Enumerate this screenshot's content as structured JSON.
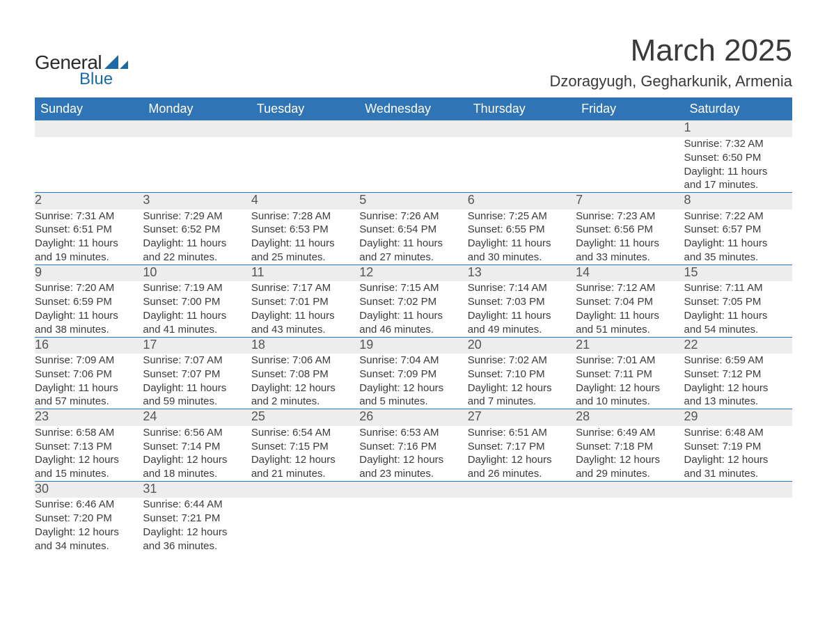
{
  "brand": {
    "name_part1": "General",
    "name_part2": "Blue",
    "text_color": "#2a2a2a",
    "accent_color": "#1a6aa8"
  },
  "title": {
    "month_year": "March 2025",
    "location": "Dzoragyugh, Gegharkunik, Armenia",
    "title_fontsize": 44,
    "location_fontsize": 22,
    "title_color": "#3a3a3a"
  },
  "calendar": {
    "type": "table",
    "header_bg": "#2f74b5",
    "header_text_color": "#ffffff",
    "daynum_bg": "#ededed",
    "row_border_color": "#2f74b5",
    "body_text_color": "#3b3b3b",
    "body_fontsize": 15,
    "daynum_fontsize": 18,
    "columns": [
      "Sunday",
      "Monday",
      "Tuesday",
      "Wednesday",
      "Thursday",
      "Friday",
      "Saturday"
    ],
    "weeks": [
      [
        null,
        null,
        null,
        null,
        null,
        null,
        {
          "n": "1",
          "sunrise": "Sunrise: 7:32 AM",
          "sunset": "Sunset: 6:50 PM",
          "dl1": "Daylight: 11 hours",
          "dl2": "and 17 minutes."
        }
      ],
      [
        {
          "n": "2",
          "sunrise": "Sunrise: 7:31 AM",
          "sunset": "Sunset: 6:51 PM",
          "dl1": "Daylight: 11 hours",
          "dl2": "and 19 minutes."
        },
        {
          "n": "3",
          "sunrise": "Sunrise: 7:29 AM",
          "sunset": "Sunset: 6:52 PM",
          "dl1": "Daylight: 11 hours",
          "dl2": "and 22 minutes."
        },
        {
          "n": "4",
          "sunrise": "Sunrise: 7:28 AM",
          "sunset": "Sunset: 6:53 PM",
          "dl1": "Daylight: 11 hours",
          "dl2": "and 25 minutes."
        },
        {
          "n": "5",
          "sunrise": "Sunrise: 7:26 AM",
          "sunset": "Sunset: 6:54 PM",
          "dl1": "Daylight: 11 hours",
          "dl2": "and 27 minutes."
        },
        {
          "n": "6",
          "sunrise": "Sunrise: 7:25 AM",
          "sunset": "Sunset: 6:55 PM",
          "dl1": "Daylight: 11 hours",
          "dl2": "and 30 minutes."
        },
        {
          "n": "7",
          "sunrise": "Sunrise: 7:23 AM",
          "sunset": "Sunset: 6:56 PM",
          "dl1": "Daylight: 11 hours",
          "dl2": "and 33 minutes."
        },
        {
          "n": "8",
          "sunrise": "Sunrise: 7:22 AM",
          "sunset": "Sunset: 6:57 PM",
          "dl1": "Daylight: 11 hours",
          "dl2": "and 35 minutes."
        }
      ],
      [
        {
          "n": "9",
          "sunrise": "Sunrise: 7:20 AM",
          "sunset": "Sunset: 6:59 PM",
          "dl1": "Daylight: 11 hours",
          "dl2": "and 38 minutes."
        },
        {
          "n": "10",
          "sunrise": "Sunrise: 7:19 AM",
          "sunset": "Sunset: 7:00 PM",
          "dl1": "Daylight: 11 hours",
          "dl2": "and 41 minutes."
        },
        {
          "n": "11",
          "sunrise": "Sunrise: 7:17 AM",
          "sunset": "Sunset: 7:01 PM",
          "dl1": "Daylight: 11 hours",
          "dl2": "and 43 minutes."
        },
        {
          "n": "12",
          "sunrise": "Sunrise: 7:15 AM",
          "sunset": "Sunset: 7:02 PM",
          "dl1": "Daylight: 11 hours",
          "dl2": "and 46 minutes."
        },
        {
          "n": "13",
          "sunrise": "Sunrise: 7:14 AM",
          "sunset": "Sunset: 7:03 PM",
          "dl1": "Daylight: 11 hours",
          "dl2": "and 49 minutes."
        },
        {
          "n": "14",
          "sunrise": "Sunrise: 7:12 AM",
          "sunset": "Sunset: 7:04 PM",
          "dl1": "Daylight: 11 hours",
          "dl2": "and 51 minutes."
        },
        {
          "n": "15",
          "sunrise": "Sunrise: 7:11 AM",
          "sunset": "Sunset: 7:05 PM",
          "dl1": "Daylight: 11 hours",
          "dl2": "and 54 minutes."
        }
      ],
      [
        {
          "n": "16",
          "sunrise": "Sunrise: 7:09 AM",
          "sunset": "Sunset: 7:06 PM",
          "dl1": "Daylight: 11 hours",
          "dl2": "and 57 minutes."
        },
        {
          "n": "17",
          "sunrise": "Sunrise: 7:07 AM",
          "sunset": "Sunset: 7:07 PM",
          "dl1": "Daylight: 11 hours",
          "dl2": "and 59 minutes."
        },
        {
          "n": "18",
          "sunrise": "Sunrise: 7:06 AM",
          "sunset": "Sunset: 7:08 PM",
          "dl1": "Daylight: 12 hours",
          "dl2": "and 2 minutes."
        },
        {
          "n": "19",
          "sunrise": "Sunrise: 7:04 AM",
          "sunset": "Sunset: 7:09 PM",
          "dl1": "Daylight: 12 hours",
          "dl2": "and 5 minutes."
        },
        {
          "n": "20",
          "sunrise": "Sunrise: 7:02 AM",
          "sunset": "Sunset: 7:10 PM",
          "dl1": "Daylight: 12 hours",
          "dl2": "and 7 minutes."
        },
        {
          "n": "21",
          "sunrise": "Sunrise: 7:01 AM",
          "sunset": "Sunset: 7:11 PM",
          "dl1": "Daylight: 12 hours",
          "dl2": "and 10 minutes."
        },
        {
          "n": "22",
          "sunrise": "Sunrise: 6:59 AM",
          "sunset": "Sunset: 7:12 PM",
          "dl1": "Daylight: 12 hours",
          "dl2": "and 13 minutes."
        }
      ],
      [
        {
          "n": "23",
          "sunrise": "Sunrise: 6:58 AM",
          "sunset": "Sunset: 7:13 PM",
          "dl1": "Daylight: 12 hours",
          "dl2": "and 15 minutes."
        },
        {
          "n": "24",
          "sunrise": "Sunrise: 6:56 AM",
          "sunset": "Sunset: 7:14 PM",
          "dl1": "Daylight: 12 hours",
          "dl2": "and 18 minutes."
        },
        {
          "n": "25",
          "sunrise": "Sunrise: 6:54 AM",
          "sunset": "Sunset: 7:15 PM",
          "dl1": "Daylight: 12 hours",
          "dl2": "and 21 minutes."
        },
        {
          "n": "26",
          "sunrise": "Sunrise: 6:53 AM",
          "sunset": "Sunset: 7:16 PM",
          "dl1": "Daylight: 12 hours",
          "dl2": "and 23 minutes."
        },
        {
          "n": "27",
          "sunrise": "Sunrise: 6:51 AM",
          "sunset": "Sunset: 7:17 PM",
          "dl1": "Daylight: 12 hours",
          "dl2": "and 26 minutes."
        },
        {
          "n": "28",
          "sunrise": "Sunrise: 6:49 AM",
          "sunset": "Sunset: 7:18 PM",
          "dl1": "Daylight: 12 hours",
          "dl2": "and 29 minutes."
        },
        {
          "n": "29",
          "sunrise": "Sunrise: 6:48 AM",
          "sunset": "Sunset: 7:19 PM",
          "dl1": "Daylight: 12 hours",
          "dl2": "and 31 minutes."
        }
      ],
      [
        {
          "n": "30",
          "sunrise": "Sunrise: 6:46 AM",
          "sunset": "Sunset: 7:20 PM",
          "dl1": "Daylight: 12 hours",
          "dl2": "and 34 minutes."
        },
        {
          "n": "31",
          "sunrise": "Sunrise: 6:44 AM",
          "sunset": "Sunset: 7:21 PM",
          "dl1": "Daylight: 12 hours",
          "dl2": "and 36 minutes."
        },
        null,
        null,
        null,
        null,
        null
      ]
    ]
  }
}
